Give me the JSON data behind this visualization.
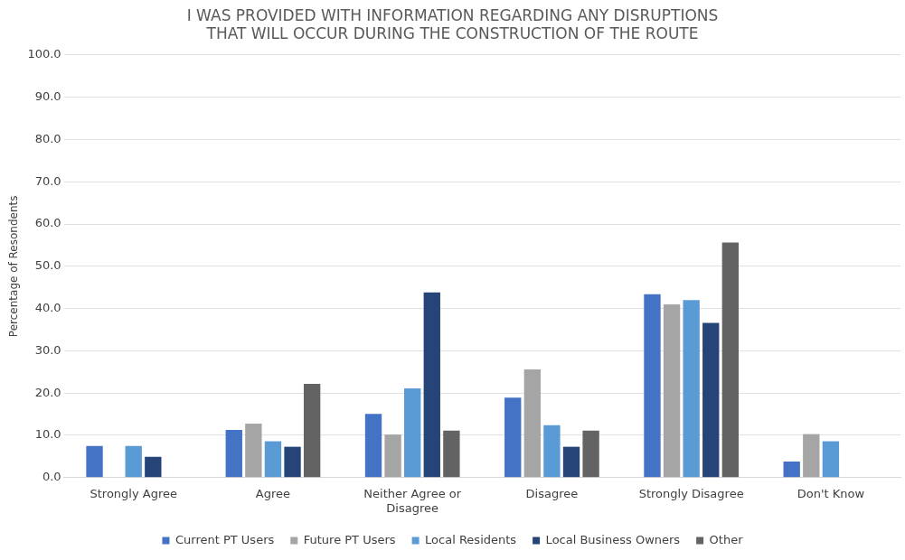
{
  "chart_data": {
    "type": "bar",
    "title": "I WAS PROVIDED WITH INFORMATION REGARDING ANY DISRUPTIONS\nTHAT WILL OCCUR DURING THE CONSTRUCTION OF THE ROUTE",
    "ylabel": "Percentage of Resondents",
    "categories": [
      "Strongly Agree",
      "Agree",
      "Neither Agree or Disagree",
      "Disagree",
      "Strongly Disagree",
      "Don't Know"
    ],
    "series": [
      {
        "name": "Current PT Users",
        "color": "#4472c4",
        "values": [
          7.5,
          11.3,
          15.1,
          18.9,
          43.4,
          3.8
        ]
      },
      {
        "name": "Future PT Users",
        "color": "#a5a5a5",
        "values": [
          0,
          12.8,
          10.2,
          25.6,
          41.0,
          10.3
        ]
      },
      {
        "name": "Local Residents",
        "color": "#5b9bd5",
        "values": [
          7.5,
          8.6,
          21.1,
          12.4,
          42.0,
          8.6
        ]
      },
      {
        "name": "Local Business Owners",
        "color": "#264478",
        "values": [
          4.9,
          7.3,
          43.8,
          7.3,
          36.6,
          0
        ]
      },
      {
        "name": "Other",
        "color": "#636363",
        "values": [
          0,
          22.2,
          11.1,
          11.1,
          55.6,
          0
        ]
      }
    ],
    "ylim": [
      0,
      100
    ],
    "yticks": [
      {
        "value": 0,
        "label": "0.0"
      },
      {
        "value": 10,
        "label": "10.0"
      },
      {
        "value": 20,
        "label": "20.0"
      },
      {
        "value": 30,
        "label": "30.0"
      },
      {
        "value": 40,
        "label": "40.0"
      },
      {
        "value": 50,
        "label": "50.0"
      },
      {
        "value": 60,
        "label": "60.0"
      },
      {
        "value": 70,
        "label": "70.0"
      },
      {
        "value": 80,
        "label": "80.0"
      },
      {
        "value": 90,
        "label": "90.0"
      },
      {
        "value": 100,
        "label": "100.0"
      }
    ],
    "grid": "y",
    "legend": "bottom"
  }
}
